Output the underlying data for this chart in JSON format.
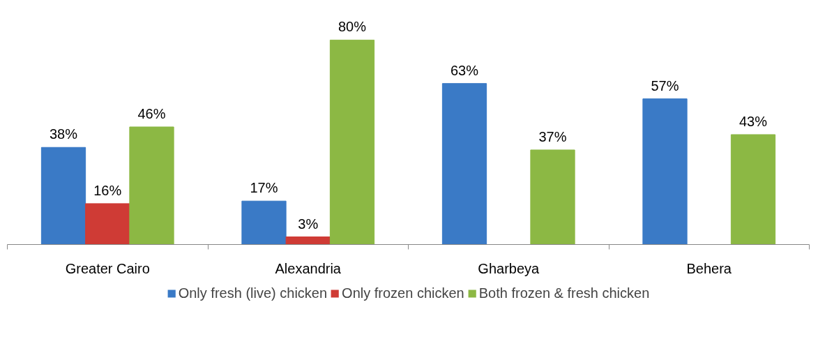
{
  "chart_data": {
    "type": "bar",
    "categories": [
      "Greater Cairo",
      "Alexandria",
      "Gharbeya",
      "Behera"
    ],
    "series": [
      {
        "name": "Only fresh (live) chicken",
        "color": "#3a7ac6",
        "values": [
          38,
          17,
          63,
          57
        ],
        "value_labels": [
          "38%",
          "17%",
          "63%",
          "57%"
        ]
      },
      {
        "name": "Only frozen chicken",
        "color": "#cf3b35",
        "values": [
          16,
          3,
          null,
          null
        ],
        "value_labels": [
          "16%",
          "3%",
          null,
          null
        ]
      },
      {
        "name": "Both frozen & fresh chicken",
        "color": "#8cb844",
        "values": [
          46,
          80,
          37,
          43
        ],
        "value_labels": [
          "46%",
          "80%",
          "37%",
          "43%"
        ]
      }
    ],
    "legend": "bottom"
  }
}
